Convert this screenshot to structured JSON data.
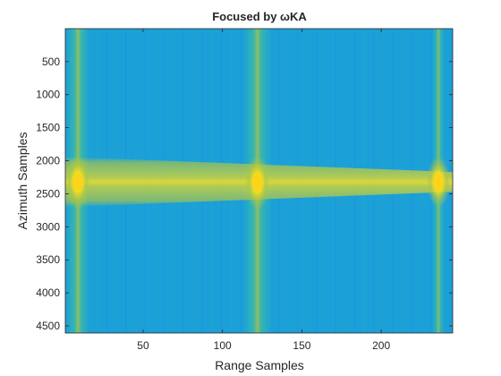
{
  "chart_data": {
    "type": "heatmap",
    "title": "Focused by ωKA",
    "xlabel": "Range Samples",
    "ylabel": "Azimuth Samples",
    "xlim": [
      1,
      245
    ],
    "ylim": [
      1,
      4608
    ],
    "y_reversed": true,
    "xticks": [
      50,
      100,
      150,
      200
    ],
    "yticks": [
      500,
      1000,
      1500,
      2000,
      2500,
      3000,
      3500,
      4000,
      4500
    ],
    "colormap": "parula",
    "grid": false,
    "legend": "none",
    "background_level": 0.38,
    "horizontal_band": {
      "azimuth_center": 2320,
      "azimuth_halfwidth_left": 380,
      "azimuth_halfwidth_right": 150,
      "level": 0.62
    },
    "vertical_stripes": [
      {
        "range_center": 9,
        "halfwidth": 8,
        "level": 0.55
      },
      {
        "range_center": 122,
        "halfwidth": 9,
        "level": 0.55
      },
      {
        "range_center": 236,
        "halfwidth": 4,
        "level": 0.55
      }
    ],
    "targets": [
      {
        "range": 9,
        "azimuth": 2320,
        "intensity": 1.0
      },
      {
        "range": 122,
        "azimuth": 2330,
        "intensity": 1.0
      },
      {
        "range": 236,
        "azimuth": 2320,
        "intensity": 0.95
      }
    ],
    "colors": {
      "low": "#2a6fe0",
      "background": "#1ba0d8",
      "mid": "#3fbfa0",
      "band": "#a9c44a",
      "high": "#f5e020",
      "peak": "#ffd21a"
    }
  }
}
